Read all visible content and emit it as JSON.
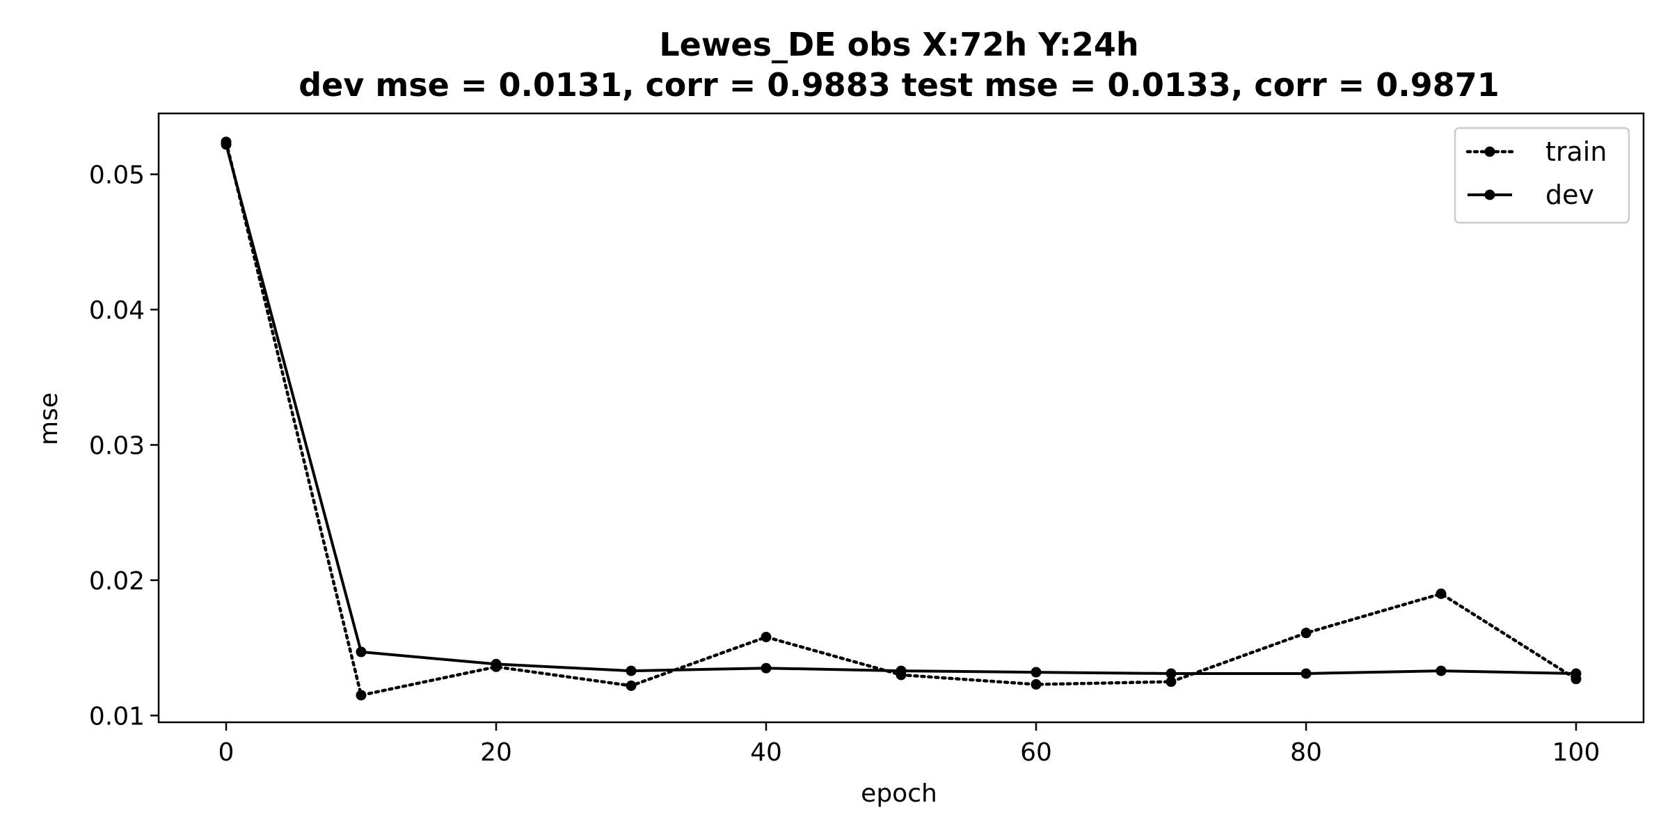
{
  "chart_data": {
    "type": "line",
    "title": "Lewes_DE   obs   X:72h   Y:24h",
    "subtitle": "dev mse = 0.0131, corr = 0.9883   test mse = 0.0133, corr = 0.9871",
    "xlabel": "epoch",
    "ylabel": "mse",
    "xlim": [
      -5,
      105
    ],
    "ylim": [
      0.0095,
      0.0545
    ],
    "xticks": [
      0,
      20,
      40,
      60,
      80,
      100
    ],
    "yticks": [
      0.01,
      0.02,
      0.03,
      0.04,
      0.05
    ],
    "xtick_labels": [
      "0",
      "20",
      "40",
      "60",
      "80",
      "100"
    ],
    "ytick_labels": [
      "0.01",
      "0.02",
      "0.03",
      "0.04",
      "0.05"
    ],
    "grid": false,
    "legend_position": "top-right",
    "series": [
      {
        "name": "train",
        "style": "dotted",
        "color": "#000000",
        "x": [
          0,
          10,
          20,
          30,
          40,
          50,
          60,
          70,
          80,
          90,
          100
        ],
        "y": [
          0.0524,
          0.0115,
          0.0136,
          0.0122,
          0.0158,
          0.013,
          0.0123,
          0.0125,
          0.0161,
          0.019,
          0.0127
        ]
      },
      {
        "name": "dev",
        "style": "solid",
        "color": "#000000",
        "x": [
          0,
          10,
          20,
          30,
          40,
          50,
          60,
          70,
          80,
          90,
          100
        ],
        "y": [
          0.0522,
          0.0147,
          0.0138,
          0.0133,
          0.0135,
          0.0133,
          0.0132,
          0.0131,
          0.0131,
          0.0133,
          0.0131
        ]
      }
    ]
  }
}
